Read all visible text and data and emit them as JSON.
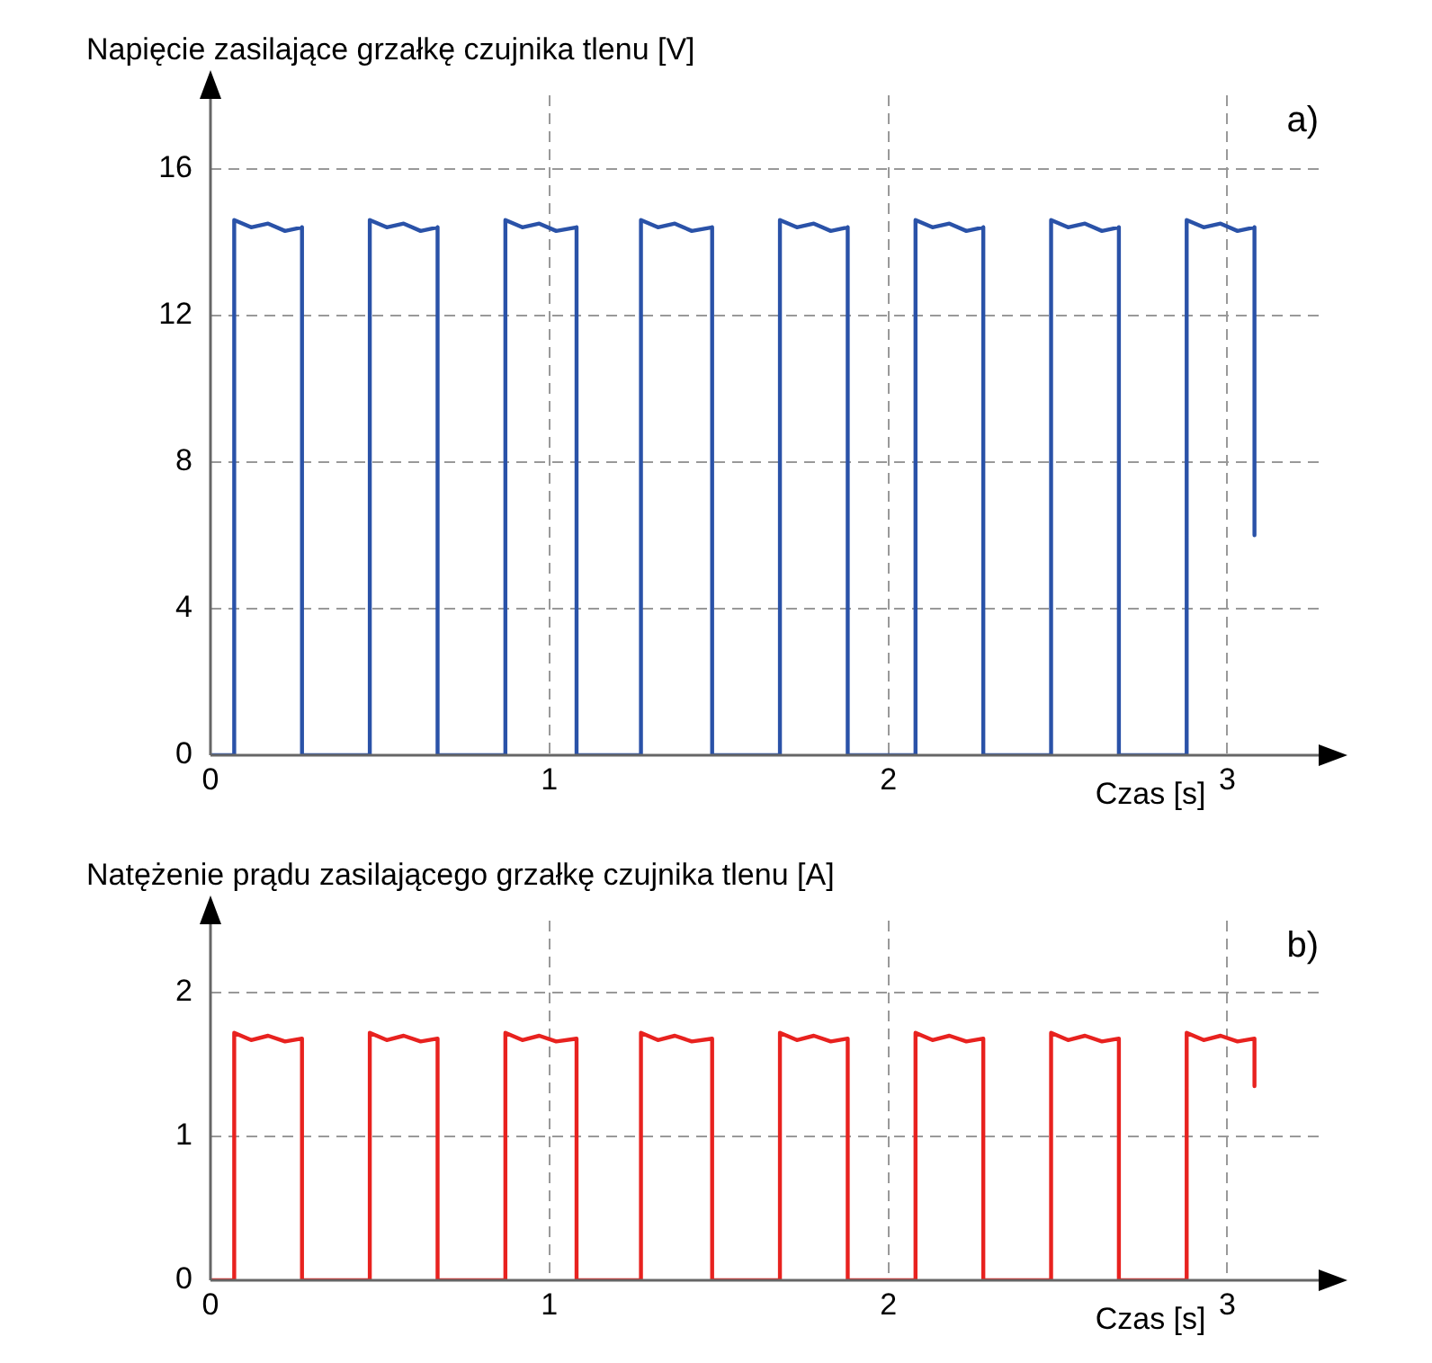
{
  "chart_data": [
    {
      "type": "line",
      "ylabel": "Napięcie zasilające grzałkę czujnika tlenu [V]",
      "xlabel": "Czas [s]",
      "annotations": [
        "a)"
      ],
      "marker": "none",
      "grid": true,
      "x": [
        0,
        0.07,
        0.07,
        0.12,
        0.17,
        0.22,
        0.27,
        0.27,
        0.47,
        0.47,
        0.52,
        0.57,
        0.62,
        0.67,
        0.67,
        0.87,
        0.87,
        0.92,
        0.97,
        1.02,
        1.08,
        1.08,
        1.27,
        1.27,
        1.32,
        1.37,
        1.42,
        1.48,
        1.48,
        1.68,
        1.68,
        1.73,
        1.78,
        1.83,
        1.88,
        1.88,
        2.08,
        2.08,
        2.13,
        2.18,
        2.23,
        2.28,
        2.28,
        2.48,
        2.48,
        2.53,
        2.58,
        2.63,
        2.68,
        2.68,
        2.88,
        2.88,
        2.93,
        2.98,
        3.03,
        3.08,
        3.08
      ],
      "series": [
        {
          "color": "#2a52a8",
          "values": [
            0,
            0,
            14.6,
            14.4,
            14.5,
            14.3,
            14.4,
            0,
            0,
            14.6,
            14.4,
            14.5,
            14.3,
            14.4,
            0,
            0,
            14.6,
            14.4,
            14.5,
            14.3,
            14.4,
            0,
            0,
            14.6,
            14.4,
            14.5,
            14.3,
            14.4,
            0,
            0,
            14.6,
            14.4,
            14.5,
            14.3,
            14.4,
            0,
            0,
            14.6,
            14.4,
            14.5,
            14.3,
            14.4,
            0,
            0,
            14.6,
            14.4,
            14.5,
            14.3,
            14.4,
            0,
            0,
            14.6,
            14.4,
            14.5,
            14.3,
            14.4,
            6.0
          ]
        }
      ],
      "xlim": [
        0,
        3.28
      ],
      "xticks": [
        0,
        1,
        2,
        3
      ],
      "ylim": [
        0,
        18
      ],
      "yticks": [
        0,
        4,
        8,
        12,
        16
      ]
    },
    {
      "type": "line",
      "ylabel": "Natężenie prądu zasilającego grzałkę czujnika tlenu [A]",
      "xlabel": "Czas [s]",
      "annotations": [
        "b)"
      ],
      "marker": "none",
      "grid": true,
      "x": [
        0,
        0.07,
        0.07,
        0.12,
        0.17,
        0.22,
        0.27,
        0.27,
        0.47,
        0.47,
        0.52,
        0.57,
        0.62,
        0.67,
        0.67,
        0.87,
        0.87,
        0.92,
        0.97,
        1.02,
        1.08,
        1.08,
        1.27,
        1.27,
        1.32,
        1.37,
        1.42,
        1.48,
        1.48,
        1.68,
        1.68,
        1.73,
        1.78,
        1.83,
        1.88,
        1.88,
        2.08,
        2.08,
        2.13,
        2.18,
        2.23,
        2.28,
        2.28,
        2.48,
        2.48,
        2.53,
        2.58,
        2.63,
        2.68,
        2.68,
        2.88,
        2.88,
        2.93,
        2.98,
        3.03,
        3.08,
        3.08
      ],
      "series": [
        {
          "color": "#e8221f",
          "values": [
            0,
            0,
            1.72,
            1.67,
            1.7,
            1.66,
            1.68,
            0,
            0,
            1.72,
            1.67,
            1.7,
            1.66,
            1.68,
            0,
            0,
            1.72,
            1.67,
            1.7,
            1.66,
            1.68,
            0,
            0,
            1.72,
            1.67,
            1.7,
            1.66,
            1.68,
            0,
            0,
            1.72,
            1.67,
            1.7,
            1.66,
            1.68,
            0,
            0,
            1.72,
            1.67,
            1.7,
            1.66,
            1.68,
            0,
            0,
            1.72,
            1.67,
            1.7,
            1.66,
            1.68,
            0,
            0,
            1.72,
            1.67,
            1.7,
            1.66,
            1.68,
            1.35
          ]
        }
      ],
      "xlim": [
        0,
        3.28
      ],
      "xticks": [
        0,
        1,
        2,
        3
      ],
      "ylim": [
        0,
        2.5
      ],
      "yticks": [
        0,
        1,
        2
      ]
    }
  ]
}
